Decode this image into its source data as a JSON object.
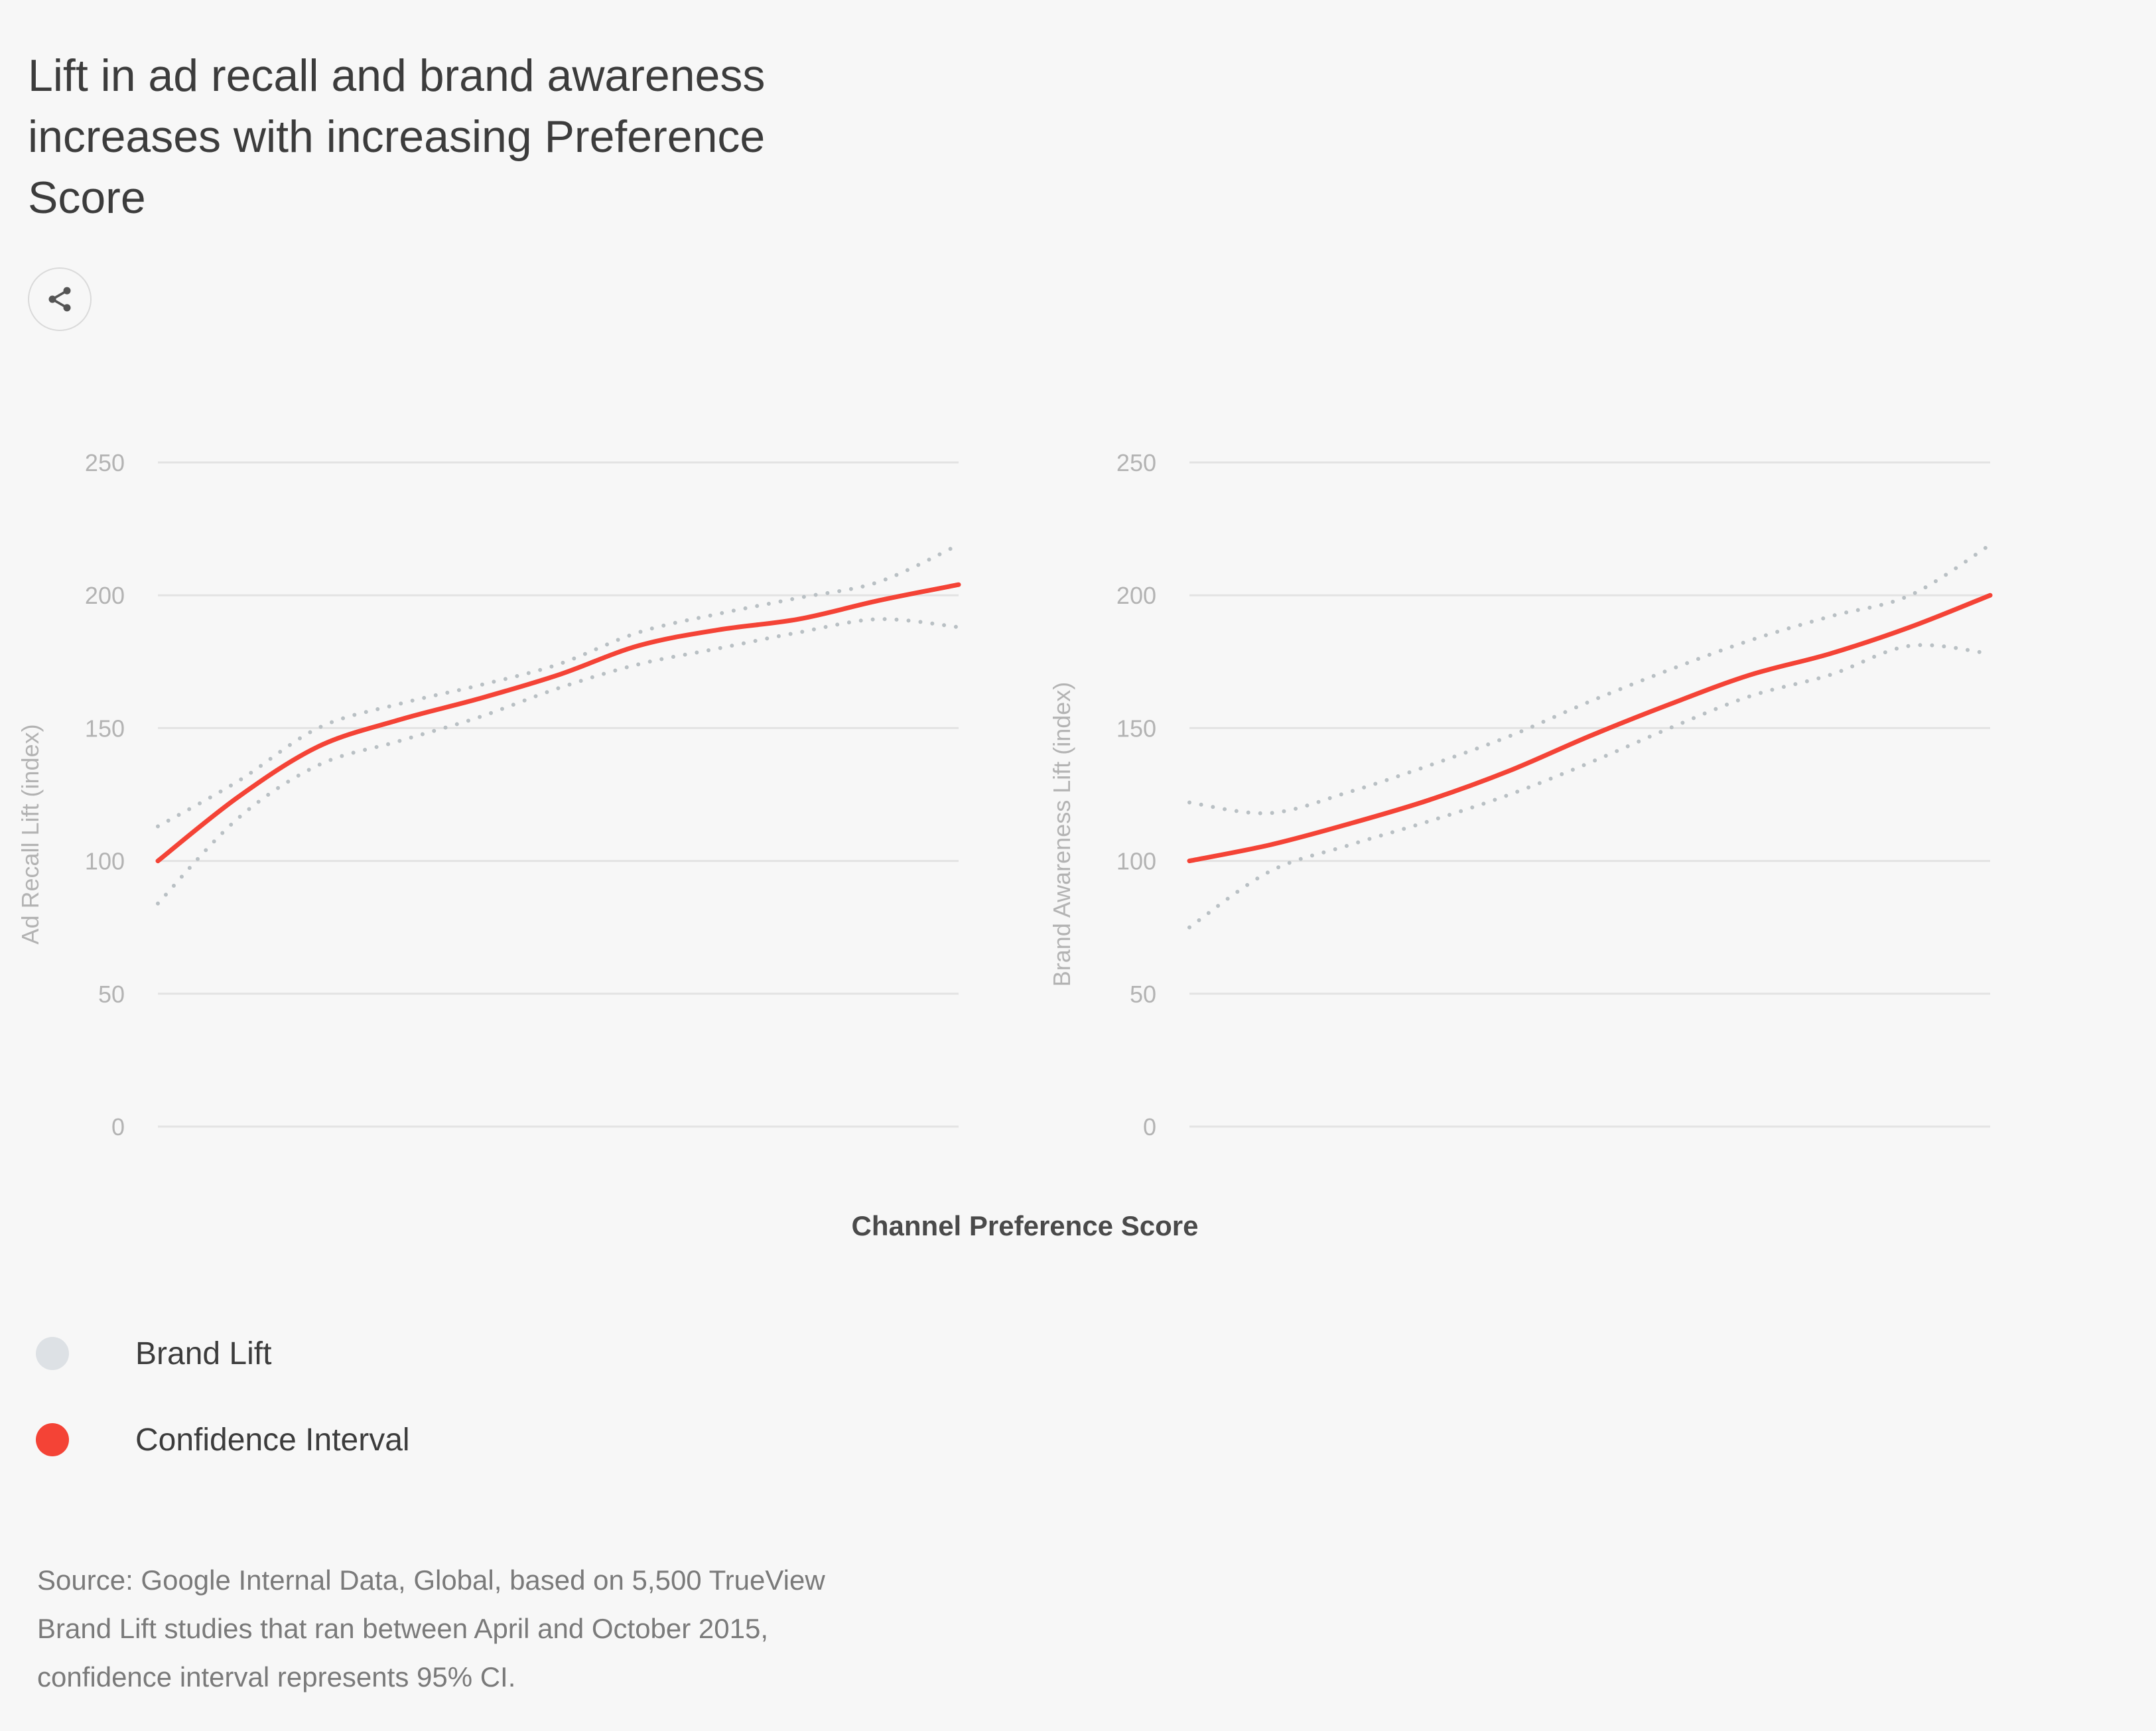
{
  "title": "Lift in ad recall and brand awareness increases with increasing Preference Score",
  "share_icon": "share-icon",
  "x_axis_label": "Channel Preference Score",
  "legend": [
    {
      "label": "Brand Lift",
      "color": "#dde1e5"
    },
    {
      "label": "Confidence Interval",
      "color": "#f44336"
    }
  ],
  "source": "Source: Google Internal Data, Global, based on 5,500 TrueView Brand Lift studies that ran between April and October 2015, confidence interval represents 95% CI.",
  "colors": {
    "line": "#f44336",
    "ci": "#b9c0c4",
    "grid": "#e3e3e3"
  },
  "chart_data": [
    {
      "type": "line",
      "ylabel": "Ad Recall Lift (index)",
      "xlabel": "Channel Preference Score",
      "ylim": [
        0,
        250
      ],
      "yticks": [
        0,
        50,
        100,
        150,
        200,
        250
      ],
      "x": [
        0,
        0.1,
        0.2,
        0.3,
        0.4,
        0.5,
        0.6,
        0.7,
        0.8,
        0.9,
        1.0
      ],
      "series": [
        {
          "name": "Line",
          "values": [
            100,
            124,
            143,
            153,
            161,
            170,
            181,
            187,
            191,
            198,
            204
          ]
        },
        {
          "name": "Upper",
          "values": [
            113,
            130,
            150,
            159,
            166,
            174,
            186,
            193,
            199,
            205,
            219
          ]
        },
        {
          "name": "Lower",
          "values": [
            84,
            116,
            136,
            145,
            154,
            165,
            174,
            180,
            186,
            191,
            188
          ]
        }
      ]
    },
    {
      "type": "line",
      "ylabel": "Brand Awareness Lift (index)",
      "xlabel": "Channel Preference Score",
      "ylim": [
        0,
        250
      ],
      "yticks": [
        0,
        50,
        100,
        150,
        200,
        250
      ],
      "x": [
        0,
        0.1,
        0.2,
        0.3,
        0.4,
        0.5,
        0.6,
        0.7,
        0.8,
        0.9,
        1.0
      ],
      "series": [
        {
          "name": "Line",
          "values": [
            100,
            106,
            114,
            123,
            134,
            147,
            159,
            170,
            178,
            188,
            200
          ]
        },
        {
          "name": "Upper",
          "values": [
            122,
            118,
            126,
            136,
            147,
            160,
            172,
            183,
            192,
            200,
            219
          ]
        },
        {
          "name": "Lower",
          "values": [
            75,
            96,
            106,
            115,
            125,
            137,
            150,
            162,
            170,
            181,
            178
          ]
        }
      ]
    }
  ]
}
